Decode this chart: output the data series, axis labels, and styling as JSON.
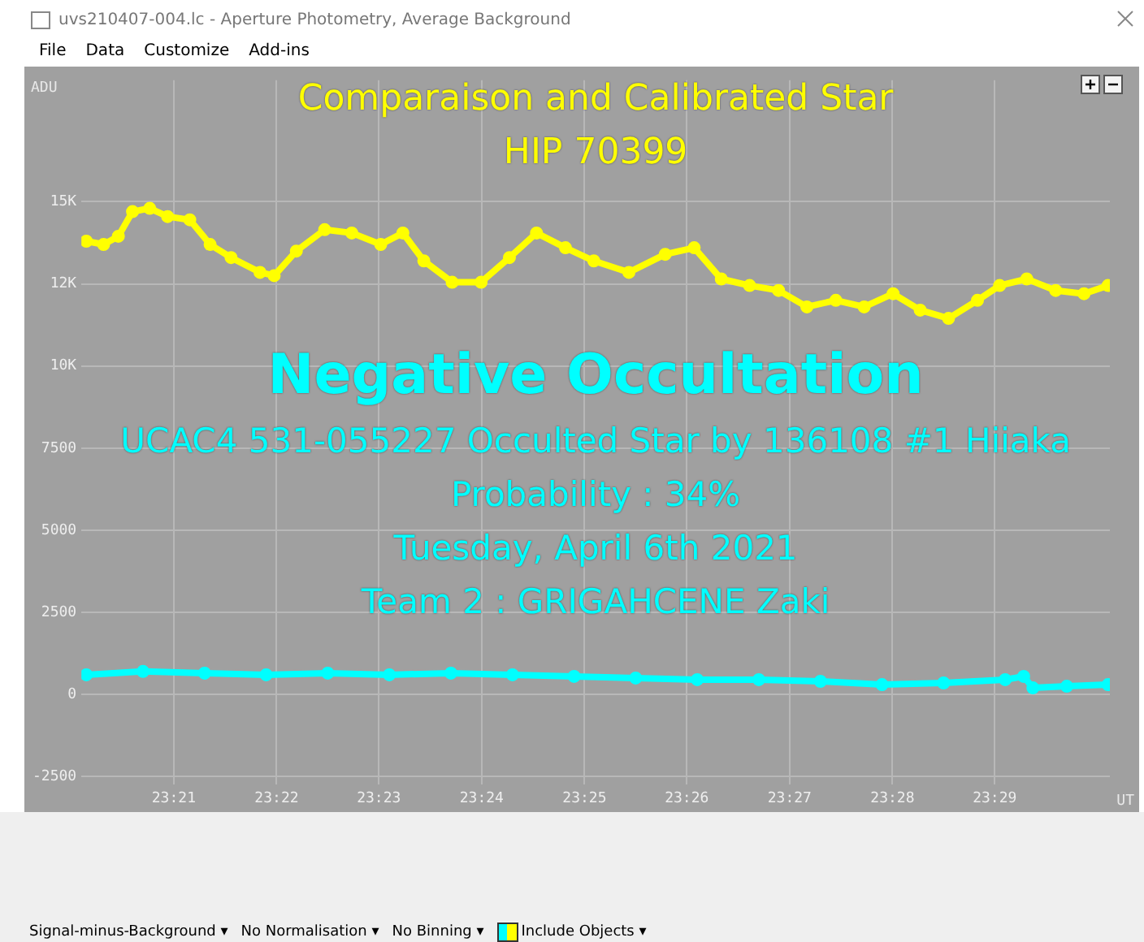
{
  "chart_data": {
    "type": "line",
    "title": "Comparaison and Calibrated Star",
    "subtitle": "HIP 70399",
    "xlabel": "UT",
    "ylabel": "ADU",
    "annotations": [
      "uvs210407-004.lc - Aperture Photometry, Average Background",
      "File",
      "Data",
      "Customize",
      "Add-ins",
      "Negative Occultation",
      "UCAC4 531-055227 Occulted Star by 136108 #1 Hiiaka",
      "Probability : 34%",
      "Tuesday, April 6th 2021",
      "Team 2 : GRIGAHCENE Zaki",
      "Signal-minus-Background ▾",
      "No Normalisation ▾",
      "No Binning ▾",
      "Include Objects ▾"
    ],
    "series": [
      {
        "color": "#ffff00",
        "x": [
          23.3358,
          23.3386,
          23.341,
          23.3433,
          23.3461,
          23.349,
          23.3526,
          23.3559,
          23.3593,
          23.364,
          23.3663,
          23.3699,
          23.3745,
          23.3789,
          23.3836,
          23.3872,
          23.3906,
          23.3952,
          23.3999,
          23.4045,
          23.4089,
          23.4136,
          23.4182,
          23.4239,
          23.4298,
          23.4345,
          23.4389,
          23.4435,
          23.4482,
          23.4528,
          23.4575,
          23.4621,
          23.4668,
          23.4712,
          23.4758,
          23.4805,
          23.4841,
          23.4885,
          23.4932,
          23.4978,
          23.5017
        ],
        "values": [
          13800,
          13700,
          13950,
          14700,
          14800,
          14550,
          14450,
          13700,
          13300,
          12850,
          12750,
          13500,
          14150,
          14050,
          13700,
          14050,
          13200,
          12550,
          12550,
          13300,
          14050,
          13600,
          13200,
          12850,
          13400,
          13600,
          12650,
          12450,
          12300,
          11800,
          12000,
          11800,
          12200,
          11700,
          11450,
          12000,
          12450,
          12650,
          12300,
          12200,
          12450
        ]
      },
      {
        "color": "#00ffff",
        "x": [
          23.3358,
          23.345,
          23.355,
          23.365,
          23.375,
          23.385,
          23.395,
          23.405,
          23.415,
          23.425,
          23.435,
          23.445,
          23.455,
          23.465,
          23.475,
          23.485,
          23.488,
          23.4895,
          23.495,
          23.5017
        ],
        "values": [
          600,
          700,
          650,
          600,
          650,
          600,
          650,
          600,
          550,
          500,
          450,
          450,
          400,
          300,
          350,
          450,
          550,
          200,
          250,
          300
        ]
      }
    ],
    "xlim": [
      23.335,
      23.502
    ],
    "ylim": [
      -2750,
      18700
    ],
    "xticks": [
      {
        "value": 23.35,
        "label": "23:21"
      },
      {
        "value": 23.3667,
        "label": "23:22"
      },
      {
        "value": 23.3833,
        "label": "23:23"
      },
      {
        "value": 23.4,
        "label": "23:24"
      },
      {
        "value": 23.4167,
        "label": "23:25"
      },
      {
        "value": 23.4333,
        "label": "23:26"
      },
      {
        "value": 23.45,
        "label": "23:27"
      },
      {
        "value": 23.4667,
        "label": "23:28"
      },
      {
        "value": 23.4833,
        "label": "23:29"
      }
    ],
    "yticks": [
      -2500,
      0,
      2500,
      5000,
      7500,
      {
        "value": 10000,
        "label": "10K"
      },
      {
        "value": 12500,
        "label": "12K"
      },
      {
        "value": 15000,
        "label": "15K"
      }
    ],
    "grid": true,
    "legend": false,
    "marker": "circle",
    "line_style": "solid"
  }
}
